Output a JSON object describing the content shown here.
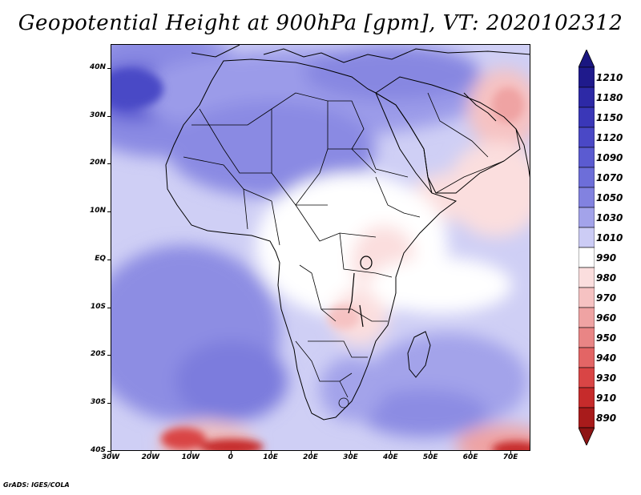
{
  "title": "Geopotential Height at 900hPa [gpm], VT: 2020102312",
  "footer": "GrADS: IGES/COLA",
  "map": {
    "region": "Africa",
    "lon_range": [
      -30,
      75
    ],
    "lat_range": [
      -40,
      45
    ],
    "lat_ticks": [
      {
        "value": 40,
        "label": "40N"
      },
      {
        "value": 30,
        "label": "30N"
      },
      {
        "value": 20,
        "label": "20N"
      },
      {
        "value": 10,
        "label": "10N"
      },
      {
        "value": 0,
        "label": "EQ"
      },
      {
        "value": -10,
        "label": "10S"
      },
      {
        "value": -20,
        "label": "20S"
      },
      {
        "value": -30,
        "label": "30S"
      },
      {
        "value": -40,
        "label": "40S"
      }
    ],
    "lon_ticks": [
      {
        "value": -30,
        "label": "30W"
      },
      {
        "value": -20,
        "label": "20W"
      },
      {
        "value": -10,
        "label": "10W"
      },
      {
        "value": 0,
        "label": "0"
      },
      {
        "value": 10,
        "label": "10E"
      },
      {
        "value": 20,
        "label": "20E"
      },
      {
        "value": 30,
        "label": "30E"
      },
      {
        "value": 40,
        "label": "40E"
      },
      {
        "value": 50,
        "label": "50E"
      },
      {
        "value": 60,
        "label": "60E"
      },
      {
        "value": 70,
        "label": "70E"
      }
    ]
  },
  "colorbar": {
    "levels": [
      {
        "label": "1210",
        "color": "#1f1a8c"
      },
      {
        "label": "1180",
        "color": "#2d29a6"
      },
      {
        "label": "1150",
        "color": "#3a37b8"
      },
      {
        "label": "1120",
        "color": "#4a48c6"
      },
      {
        "label": "1090",
        "color": "#5b5bd1"
      },
      {
        "label": "1070",
        "color": "#6d6ed9"
      },
      {
        "label": "1050",
        "color": "#8282e0"
      },
      {
        "label": "1030",
        "color": "#a3a3ea"
      },
      {
        "label": "1010",
        "color": "#ccccf5"
      },
      {
        "label": "990",
        "color": "#ffffff"
      },
      {
        "label": "980",
        "color": "#fbdede"
      },
      {
        "label": "970",
        "color": "#f6c2c2"
      },
      {
        "label": "960",
        "color": "#efa3a3"
      },
      {
        "label": "950",
        "color": "#e98585"
      },
      {
        "label": "940",
        "color": "#e36565"
      },
      {
        "label": "930",
        "color": "#d94545"
      },
      {
        "label": "910",
        "color": "#c62b2b"
      },
      {
        "label": "890",
        "color": "#a81b1b"
      }
    ],
    "top_arrow_color": "#1a1680",
    "bottom_arrow_color": "#8e1414"
  }
}
